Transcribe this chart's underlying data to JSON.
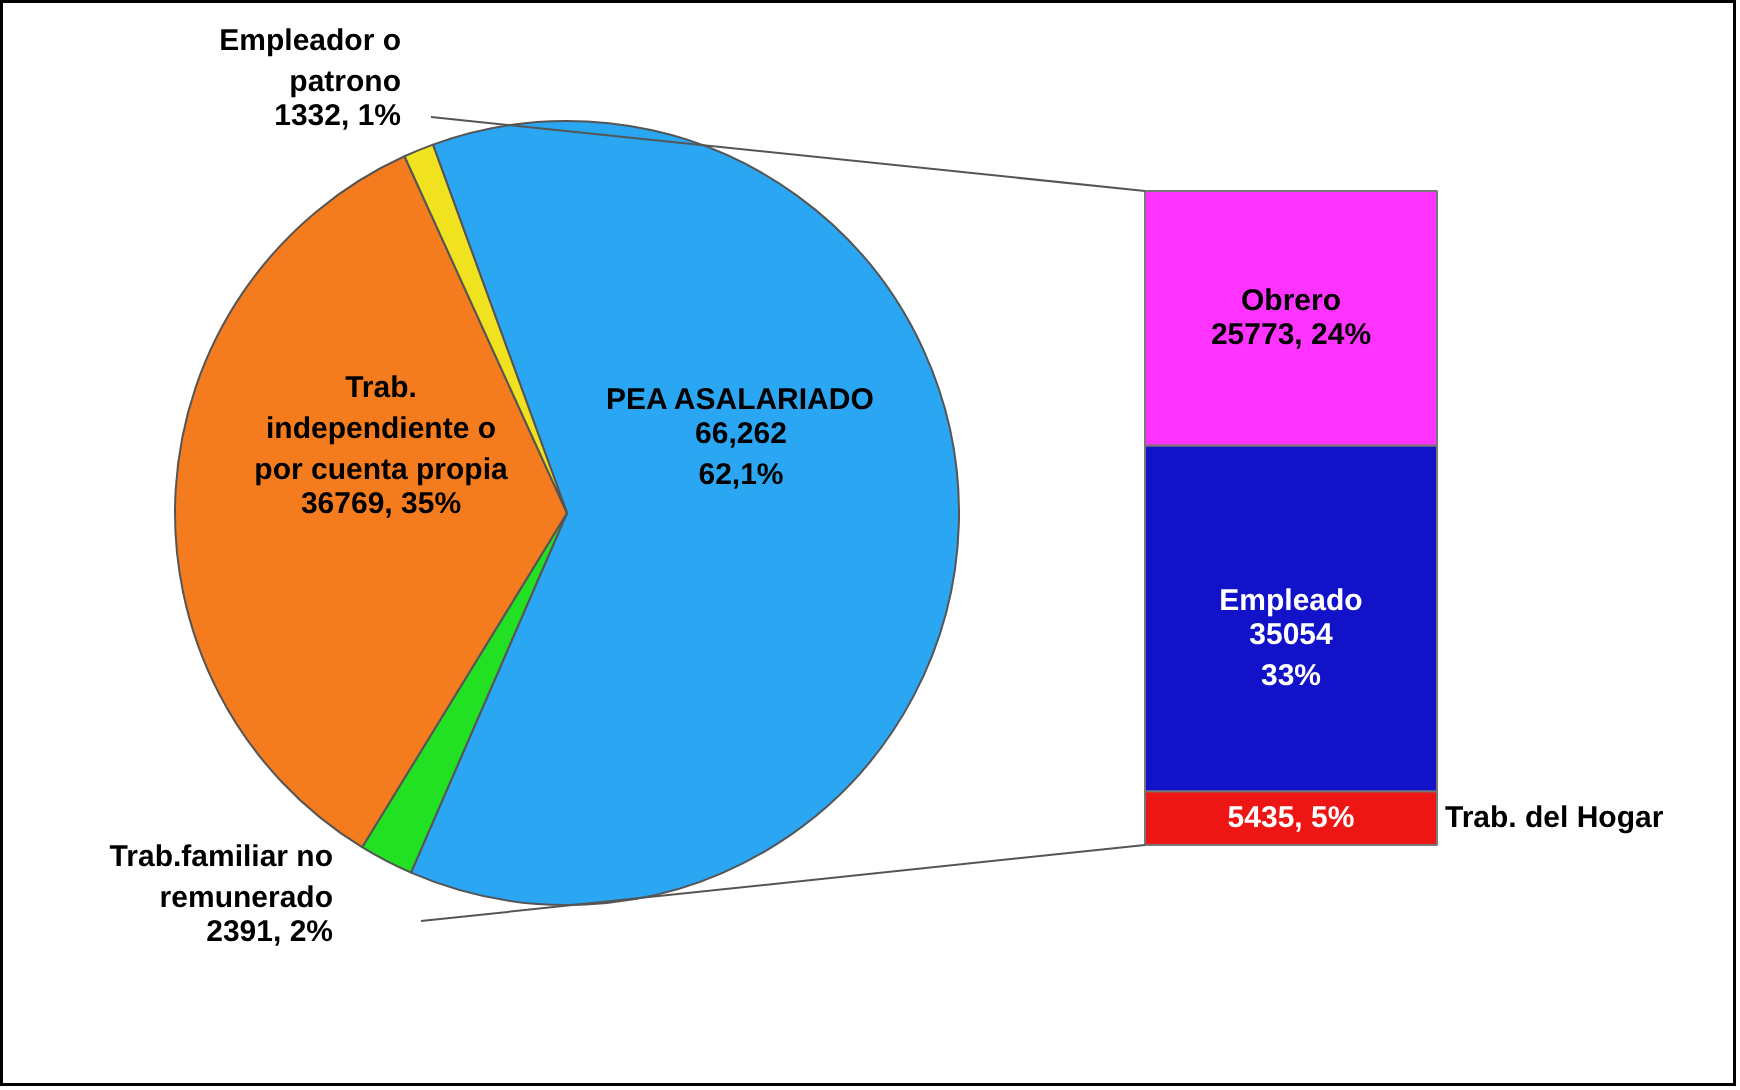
{
  "chart_data": [
    {
      "type": "pie",
      "categories": [
        "PEA ASALARIADO",
        "Trab.familiar no remunerado",
        "Trab. independiente o por cuenta propia",
        "Empleador o patrono"
      ],
      "values": [
        66262,
        2391,
        36769,
        1332
      ],
      "colors": [
        "#2aa6f2",
        "#22e022",
        "#f57c1e",
        "#f0e21e"
      ],
      "value_labels": [
        "66,262\n62,1%",
        "2391, 2%",
        "36769, 35%",
        "1332, 1%"
      ]
    },
    {
      "type": "bar",
      "stacked": true,
      "categories": [
        null
      ],
      "series": [
        {
          "name": "Trab. del Hogar",
          "color": "#ee1515",
          "values": [
            5435
          ],
          "value_labels": [
            "5435, 5%"
          ]
        },
        {
          "name": "Empleado",
          "color": "#1212c8",
          "values": [
            35054
          ],
          "value_labels": [
            "35054\n33%"
          ]
        },
        {
          "name": "Obrero",
          "color": "#ff33ff",
          "values": [
            25773
          ],
          "value_labels": [
            "25773, 24%"
          ]
        }
      ]
    }
  ]
}
